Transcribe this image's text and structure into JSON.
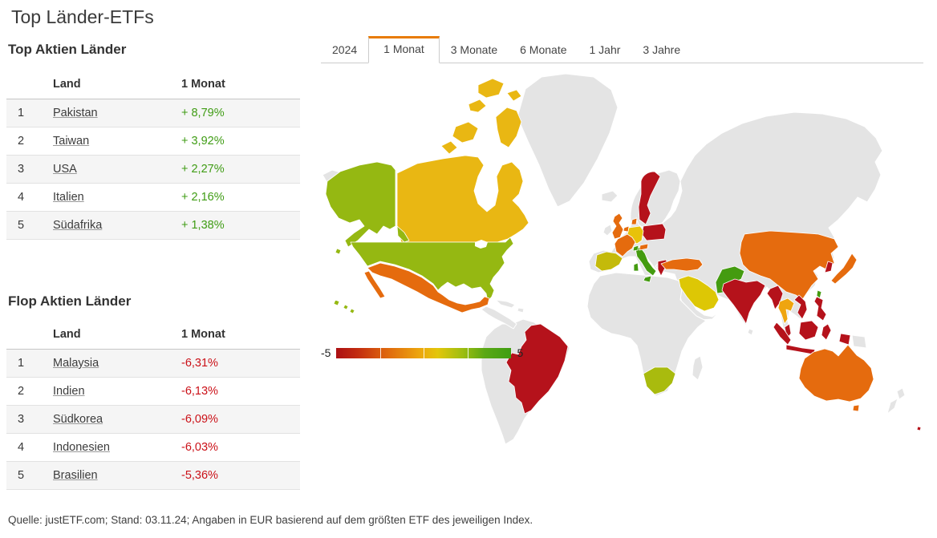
{
  "title": "Top Länder-ETFs",
  "tabs": [
    {
      "label": "2024",
      "active": false
    },
    {
      "label": "1 Monat",
      "active": true
    },
    {
      "label": "3 Monate",
      "active": false
    },
    {
      "label": "6 Monate",
      "active": false
    },
    {
      "label": "1 Jahr",
      "active": false
    },
    {
      "label": "3 Jahre",
      "active": false
    }
  ],
  "sections": {
    "top": {
      "heading": "Top Aktien Länder",
      "columns": {
        "rank": "",
        "land": "Land",
        "period": "1 Monat"
      },
      "rows": [
        {
          "rank": "1",
          "country": "Pakistan",
          "value": "+ 8,79%"
        },
        {
          "rank": "2",
          "country": "Taiwan",
          "value": "+ 3,92%"
        },
        {
          "rank": "3",
          "country": "USA",
          "value": "+ 2,27%"
        },
        {
          "rank": "4",
          "country": "Italien",
          "value": "+ 2,16%"
        },
        {
          "rank": "5",
          "country": "Südafrika",
          "value": "+ 1,38%"
        }
      ]
    },
    "flop": {
      "heading": "Flop Aktien Länder",
      "columns": {
        "rank": "",
        "land": "Land",
        "period": "1 Monat"
      },
      "rows": [
        {
          "rank": "1",
          "country": "Malaysia",
          "value": "-6,31%"
        },
        {
          "rank": "2",
          "country": "Indien",
          "value": "-6,13%"
        },
        {
          "rank": "3",
          "country": "Südkorea",
          "value": "-6,09%"
        },
        {
          "rank": "4",
          "country": "Indonesien",
          "value": "-6,03%"
        },
        {
          "rank": "5",
          "country": "Brasilien",
          "value": "-5,36%"
        }
      ]
    }
  },
  "colors": {
    "positive": "#3f9c14",
    "negative": "#cb1118",
    "accent": "#e87b05"
  },
  "map": {
    "legend": {
      "min": "-5",
      "max": "5",
      "stops": [
        "#ac1013",
        "#c22b10 12%",
        "#e06a0d 30%",
        "#eda70d 48%",
        "#e3c60a 58%",
        "#9fbe10 72%",
        "#5aa814 85%",
        "#3f9e12"
      ]
    },
    "palette": {
      "nodata": "#e4e4e4",
      "crimson": "#b5121b",
      "orange": "#e56b0e",
      "amber": "#efa50f",
      "gold": "#e9b713",
      "goldyellow": "#e8c20a",
      "yellow": "#ddc705",
      "olive": "#c4ba0a",
      "yellowgreen": "#95b812",
      "sagreen": "#a9bb0e",
      "green": "#449b10"
    },
    "countries": {
      "canada": "gold",
      "alaska": "yellowgreen",
      "usa": "yellowgreen",
      "hawaii": "yellowgreen",
      "mexico": "orange",
      "brazil": "crimson",
      "sweden": "crimson",
      "poland": "crimson",
      "germany": "goldyellow",
      "denmark": "orange",
      "netherlands": "orange",
      "uk": "orange",
      "france": "orange",
      "spain": "olive",
      "italy": "green",
      "switzerland": "green",
      "austria": "orange",
      "greece": "crimson",
      "turkey": "orange",
      "saudi-arabia": "yellow",
      "south-africa": "sagreen",
      "pakistan": "green",
      "india": "crimson",
      "china": "orange",
      "south-korea": "crimson",
      "taiwan": "green",
      "japan": "orange",
      "myanmar": "crimson",
      "thailand": "amber",
      "vietnam": "crimson",
      "malaysia": "crimson",
      "indonesia": "crimson",
      "philippines": "crimson",
      "australia": "orange",
      "fiji": "crimson"
    }
  },
  "footer": "Quelle: justETF.com; Stand: 03.11.24; Angaben in EUR basierend auf dem größten ETF des jeweiligen Index."
}
